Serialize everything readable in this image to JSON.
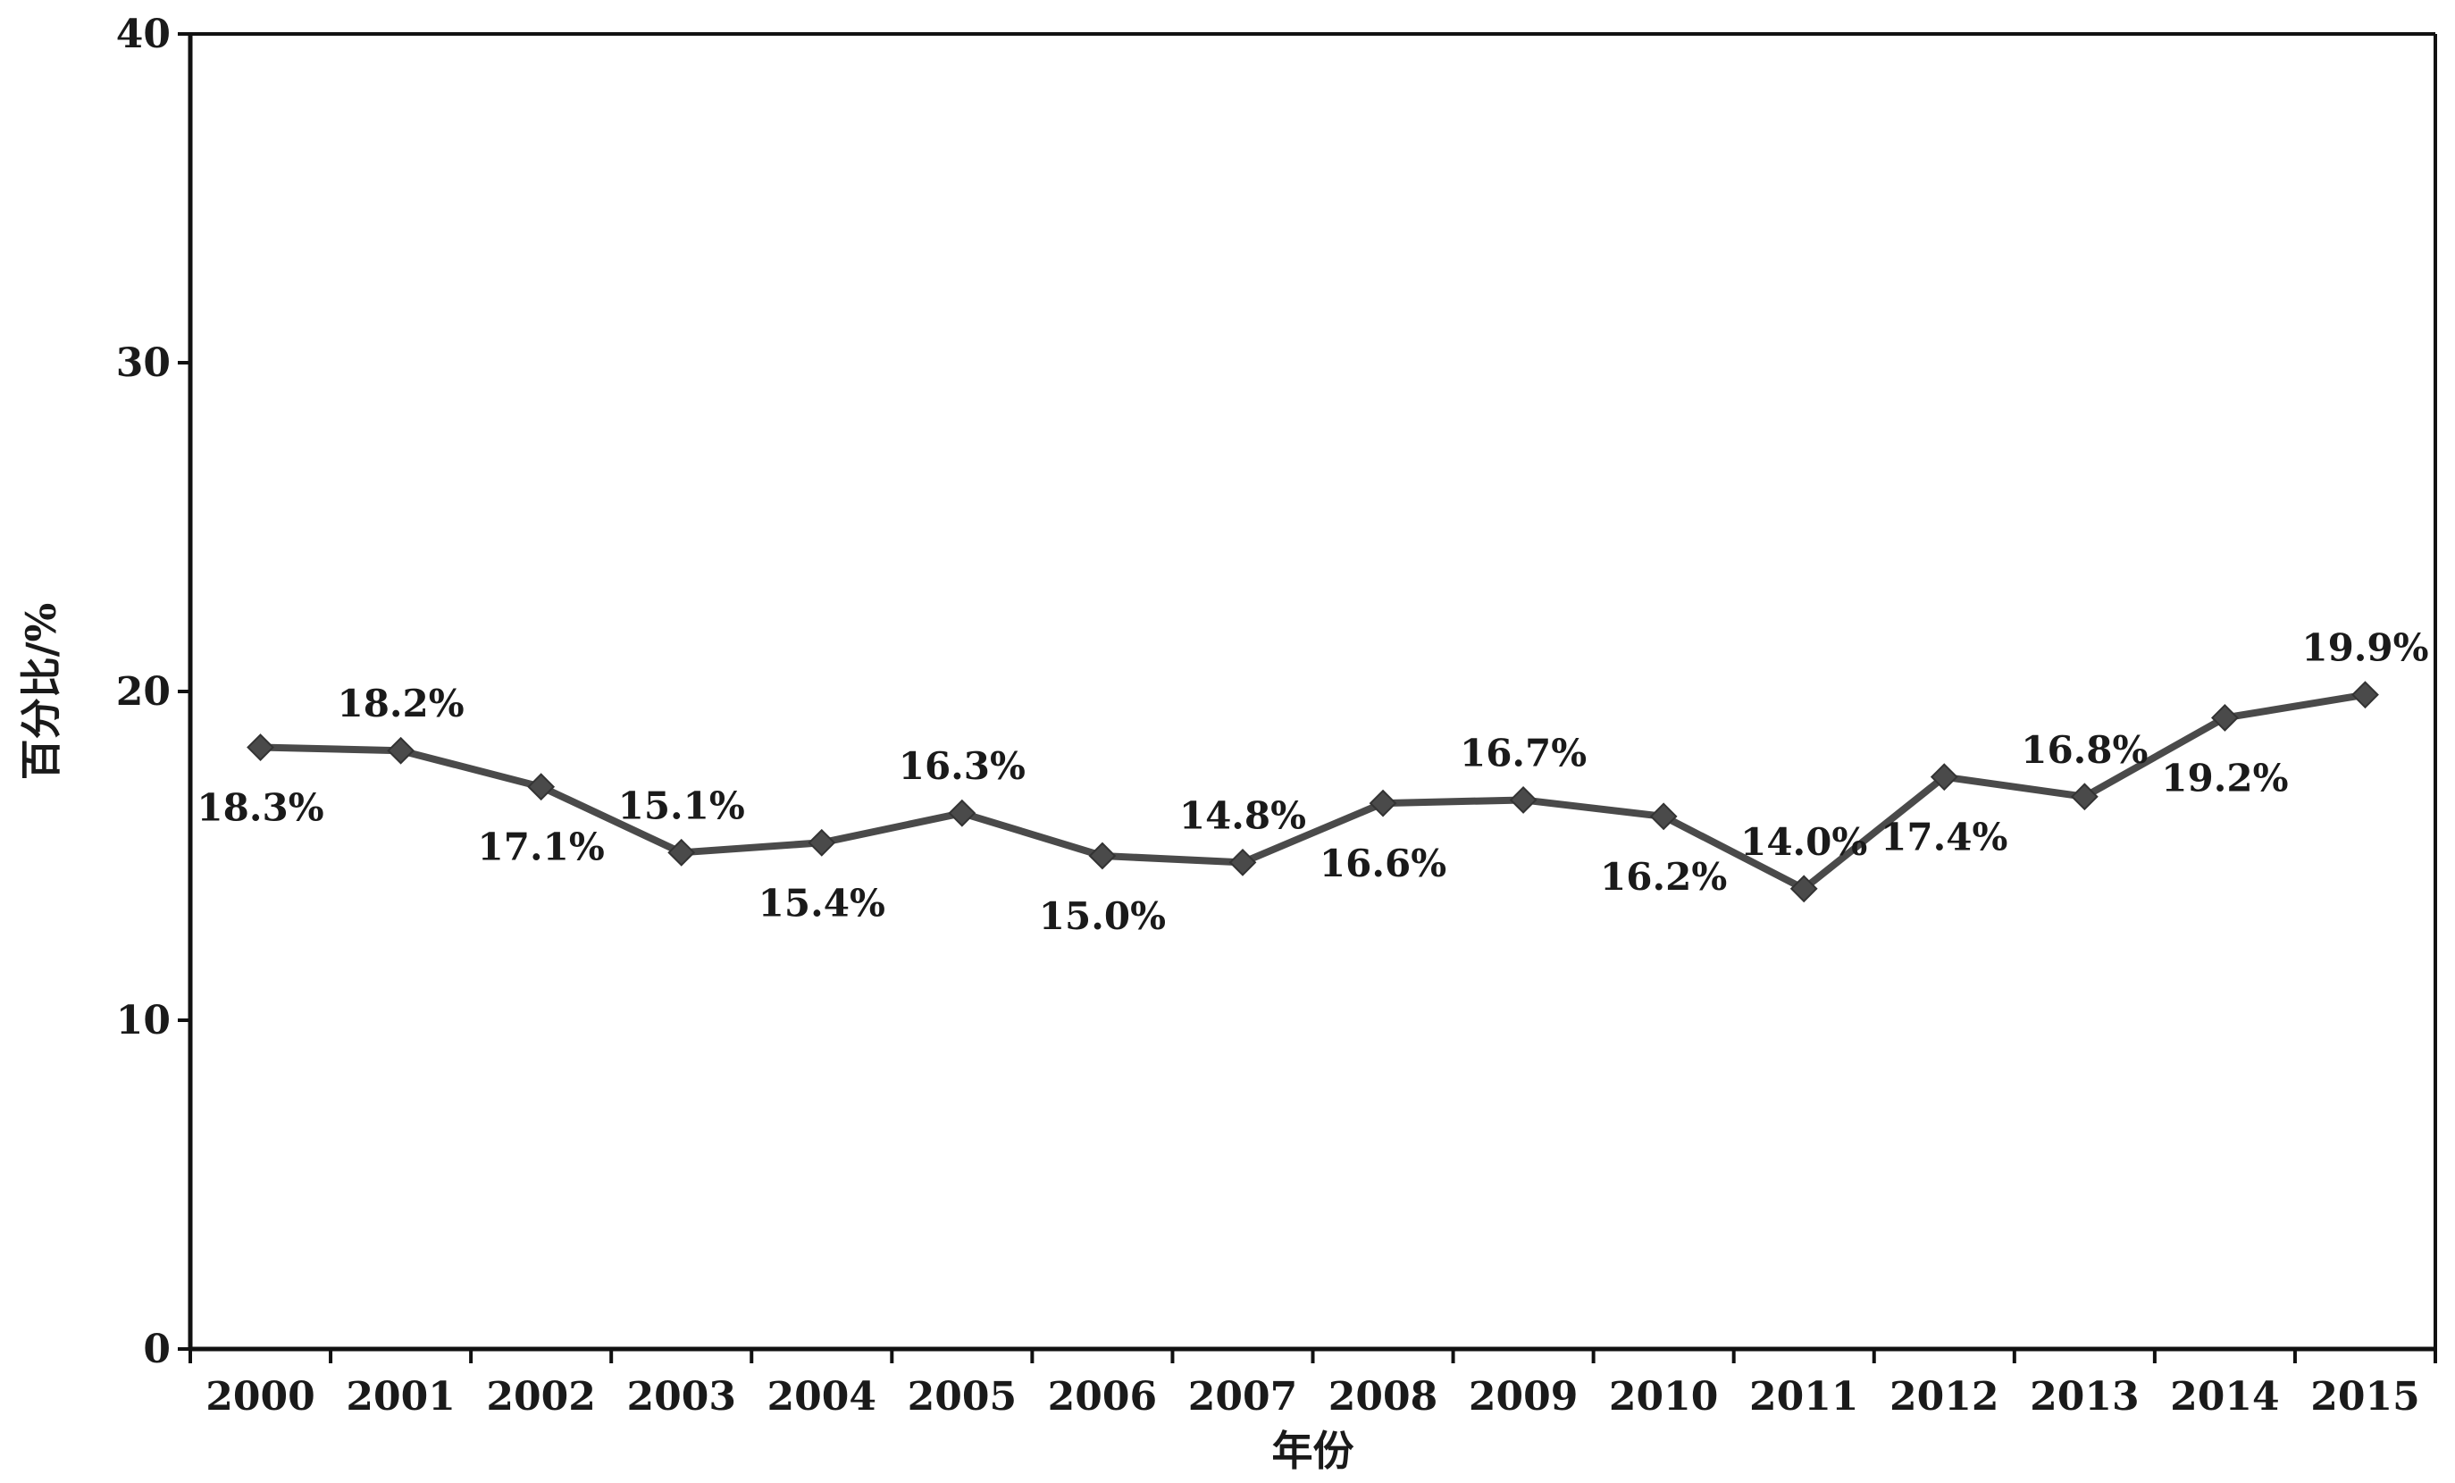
{
  "chart_data": {
    "type": "line",
    "title": "",
    "xlabel": "年份",
    "ylabel": "百分比/%",
    "categories": [
      "2000",
      "2001",
      "2002",
      "2003",
      "2004",
      "2005",
      "2006",
      "2007",
      "2008",
      "2009",
      "2010",
      "2011",
      "2012",
      "2013",
      "2014",
      "2015"
    ],
    "series": [
      {
        "values": [
          18.3,
          18.2,
          17.1,
          15.1,
          15.4,
          16.3,
          15.0,
          14.8,
          16.6,
          16.7,
          16.2,
          14.0,
          17.4,
          16.8,
          19.2,
          19.9
        ],
        "labels": [
          "18.3%",
          "18.2%",
          "17.1%",
          "15.1%",
          "15.4%",
          "16.3%",
          "15.0%",
          "14.8%",
          "16.6%",
          "16.7%",
          "16.2%",
          "14.0%",
          "17.4%",
          "16.8%",
          "19.2%",
          "19.9%"
        ],
        "label_positions": [
          "below",
          "above",
          "below",
          "above",
          "below",
          "above",
          "below",
          "above",
          "below",
          "above",
          "below",
          "above",
          "below",
          "above",
          "below",
          "above"
        ],
        "color": "#4a4a4a",
        "marker": "diamond"
      }
    ],
    "ylim": [
      0,
      40
    ],
    "yticks": [
      0,
      10,
      20,
      30,
      40
    ],
    "grid": false,
    "legend": "none"
  }
}
